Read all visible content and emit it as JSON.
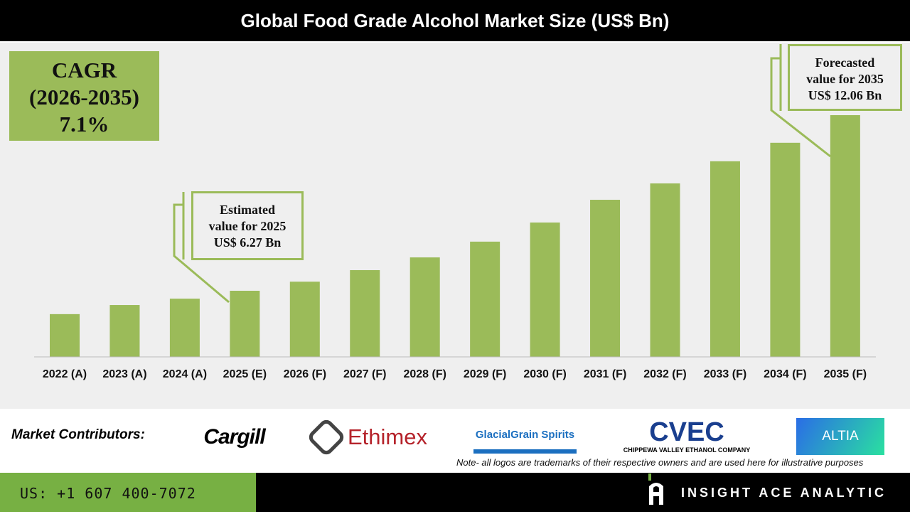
{
  "title": "Global Food Grade Alcohol Market Size (US$ Bn)",
  "cagr": {
    "line1": "CAGR",
    "line2": "(2026-2035)",
    "line3": "7.1%"
  },
  "callout_2025": {
    "line1": "Estimated",
    "line2": "value for 2025",
    "line3": "US$ 6.27 Bn"
  },
  "callout_2035": {
    "line1": "Forecasted",
    "line2": "value for 2035",
    "line3": "US$ 12.06 Bn"
  },
  "chart_data": {
    "type": "bar",
    "title": "Global Food Grade Alcohol Market Size (US$ Bn)",
    "categories": [
      "2022 (A)",
      "2023 (A)",
      "2024 (A)",
      "2025 (E)",
      "2026 (F)",
      "2027 (F)",
      "2028 (F)",
      "2029 (F)",
      "2030 (F)",
      "2031 (F)",
      "2032 (F)",
      "2033 (F)",
      "2034 (F)",
      "2035 (F)"
    ],
    "values": [
      5.5,
      5.8,
      6.01,
      6.27,
      6.57,
      6.95,
      7.37,
      7.89,
      8.52,
      9.27,
      9.81,
      10.54,
      11.15,
      12.06
    ],
    "bar_color": "#9bbb59",
    "grid": false
  },
  "contributors": {
    "label": "Market Contributors:",
    "logos": [
      "Cargill",
      "Ethimex",
      "GlacialGrain Spirits",
      "CVEC",
      "CHIPPEWA VALLEY ETHANOL COMPANY",
      "ALTIA"
    ]
  },
  "note": "Note- all logos are trademarks of their respective owners and are used here for illustrative purposes",
  "footer": {
    "phone": "US: +1 607 400-7072",
    "brand": "INSIGHT ACE ANALYTIC"
  }
}
